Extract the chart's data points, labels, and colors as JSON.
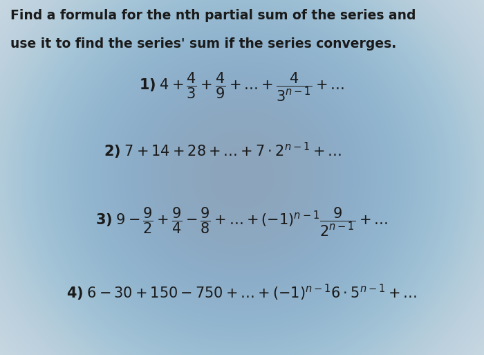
{
  "title_line1": "Find a formula for the nth partial sum of the series and",
  "title_line2": "use it to find the series' sum if the series converges.",
  "bg_color": "#b8ccd8",
  "text_color": "#1a1a1a",
  "title_fontsize": 13.5,
  "math_fontsize": 15,
  "figsize": [
    7.0,
    5.13
  ],
  "dpi": 100,
  "line1": "$\\mathbf{1)}\\; 4 + \\dfrac{4}{3} + \\dfrac{4}{9} + \\ldots + \\dfrac{4}{3^{n-1}} + \\ldots$",
  "line2": "$\\mathbf{2)}\\; 7 + 14 + 28 + \\ldots + 7 \\cdot 2^{n-1} + \\ldots$",
  "line3": "$\\mathbf{3)}\\; 9 - \\dfrac{9}{2} + \\dfrac{9}{4} - \\dfrac{9}{8} + \\ldots + (-1)^{n-1}\\dfrac{9}{2^{n-1}} + \\ldots$",
  "line4": "$\\mathbf{4)}\\; 6 - 30 + 150 - 750 + \\ldots + (-1)^{n-1} 6 \\cdot 5^{n-1} + \\ldots$"
}
